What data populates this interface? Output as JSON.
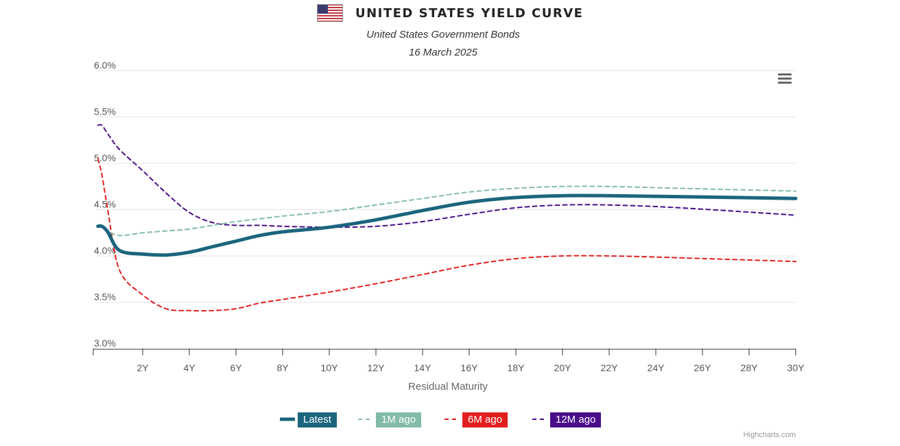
{
  "header": {
    "title": "UNITED STATES YIELD CURVE",
    "subtitle": "United States Government Bonds",
    "date": "16 March 2025",
    "flag_icon": "us-flag-icon"
  },
  "credits": "Highcharts.com",
  "chart_data": {
    "type": "line",
    "title": "UNITED STATES YIELD CURVE",
    "subtitle": "United States Government Bonds",
    "xlabel": "Residual Maturity",
    "ylabel": "",
    "xlim": [
      0,
      30
    ],
    "ylim": [
      3.0,
      6.0
    ],
    "grid": true,
    "legend": "bottom-center",
    "x_ticks": [
      "2Y",
      "4Y",
      "6Y",
      "8Y",
      "10Y",
      "12Y",
      "14Y",
      "16Y",
      "18Y",
      "20Y",
      "22Y",
      "24Y",
      "26Y",
      "28Y",
      "30Y"
    ],
    "y_ticks": [
      "3.0%",
      "3.5%",
      "4.0%",
      "4.5%",
      "5.0%",
      "5.5%",
      "6.0%"
    ],
    "series": [
      {
        "name": "Latest",
        "color": "#1b657d",
        "dash": "solid",
        "points": [
          [
            0.08,
            4.32
          ],
          [
            0.25,
            4.32
          ],
          [
            0.5,
            4.26
          ],
          [
            1,
            4.06
          ],
          [
            2,
            4.02
          ],
          [
            3,
            4.01
          ],
          [
            4,
            4.04
          ],
          [
            5,
            4.1
          ],
          [
            6,
            4.16
          ],
          [
            7,
            4.22
          ],
          [
            8,
            4.26
          ],
          [
            10,
            4.31
          ],
          [
            12,
            4.39
          ],
          [
            14,
            4.49
          ],
          [
            16,
            4.58
          ],
          [
            18,
            4.63
          ],
          [
            20,
            4.65
          ],
          [
            22,
            4.65
          ],
          [
            25,
            4.64
          ],
          [
            30,
            4.62
          ]
        ]
      },
      {
        "name": "1M ago",
        "color": "#84bba6",
        "dash": "dash",
        "points": [
          [
            0.08,
            4.33
          ],
          [
            0.25,
            4.32
          ],
          [
            0.5,
            4.27
          ],
          [
            1,
            4.22
          ],
          [
            2,
            4.25
          ],
          [
            3,
            4.27
          ],
          [
            4,
            4.29
          ],
          [
            5,
            4.33
          ],
          [
            6,
            4.37
          ],
          [
            7,
            4.4
          ],
          [
            8,
            4.43
          ],
          [
            10,
            4.48
          ],
          [
            12,
            4.55
          ],
          [
            14,
            4.62
          ],
          [
            16,
            4.69
          ],
          [
            18,
            4.73
          ],
          [
            20,
            4.75
          ],
          [
            22,
            4.75
          ],
          [
            25,
            4.73
          ],
          [
            30,
            4.7
          ]
        ]
      },
      {
        "name": "6M ago",
        "color": "#e31e1e",
        "dash": "dash",
        "points": [
          [
            0.08,
            5.05
          ],
          [
            0.25,
            4.88
          ],
          [
            0.5,
            4.5
          ],
          [
            1,
            3.85
          ],
          [
            2,
            3.58
          ],
          [
            3,
            3.43
          ],
          [
            4,
            3.41
          ],
          [
            5,
            3.41
          ],
          [
            6,
            3.43
          ],
          [
            7,
            3.49
          ],
          [
            8,
            3.53
          ],
          [
            10,
            3.61
          ],
          [
            12,
            3.7
          ],
          [
            14,
            3.8
          ],
          [
            16,
            3.9
          ],
          [
            18,
            3.97
          ],
          [
            20,
            4.0
          ],
          [
            22,
            4.0
          ],
          [
            25,
            3.98
          ],
          [
            30,
            3.94
          ]
        ]
      },
      {
        "name": "12M ago",
        "color": "#4a0d8a",
        "dash": "dash",
        "points": [
          [
            0.08,
            5.41
          ],
          [
            0.25,
            5.41
          ],
          [
            0.5,
            5.32
          ],
          [
            1,
            5.15
          ],
          [
            2,
            4.92
          ],
          [
            3,
            4.68
          ],
          [
            4,
            4.47
          ],
          [
            5,
            4.36
          ],
          [
            6,
            4.33
          ],
          [
            7,
            4.33
          ],
          [
            8,
            4.32
          ],
          [
            10,
            4.31
          ],
          [
            12,
            4.32
          ],
          [
            14,
            4.37
          ],
          [
            16,
            4.45
          ],
          [
            18,
            4.52
          ],
          [
            20,
            4.55
          ],
          [
            22,
            4.55
          ],
          [
            25,
            4.52
          ],
          [
            30,
            4.44
          ]
        ]
      }
    ]
  }
}
